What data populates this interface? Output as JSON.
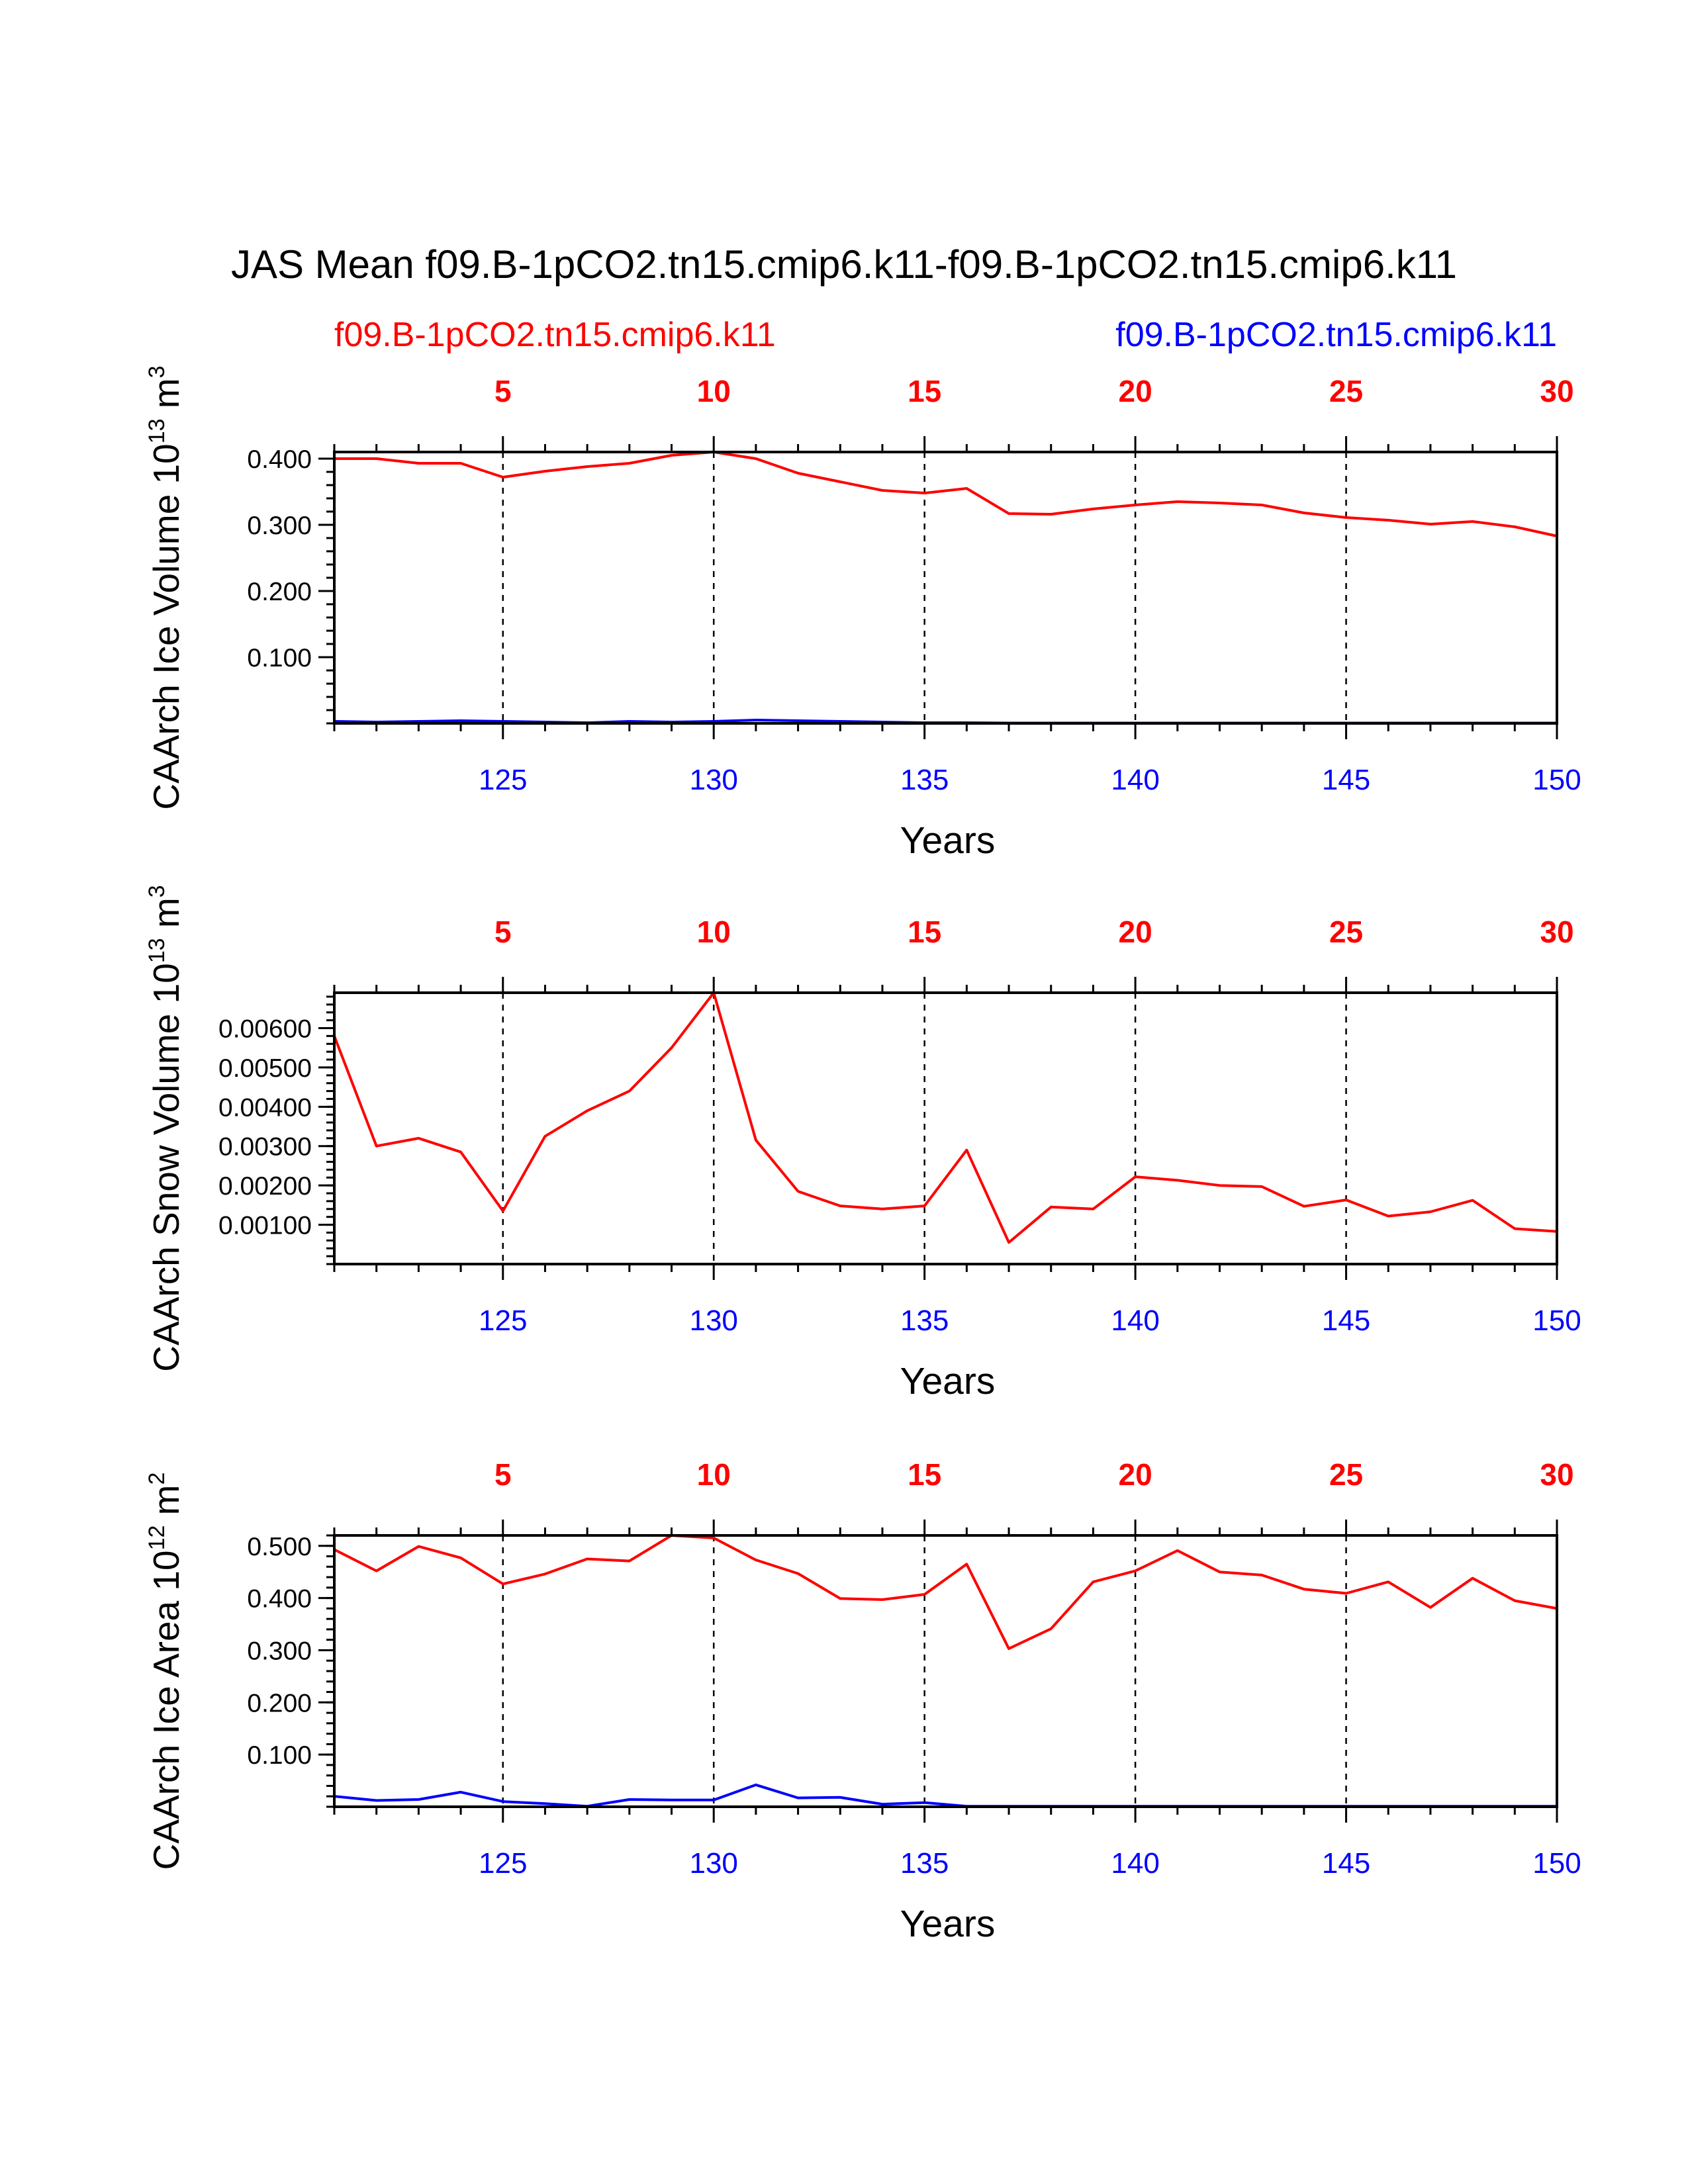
{
  "title": "JAS Mean f09.B-1pCO2.tn15.cmip6.k11-f09.B-1pCO2.tn15.cmip6.k11",
  "legend": {
    "left_label": "f09.B-1pCO2.tn15.cmip6.k11",
    "left_color": "#ff0000",
    "right_label": "f09.B-1pCO2.tn15.cmip6.k11",
    "right_color": "#0000ff"
  },
  "chart_data": [
    {
      "type": "line",
      "name": "ice-volume",
      "ylabel_main": "CAArch Ice Volume 10",
      "ylabel_exp": "13",
      "ylabel_unit": " m",
      "ylabel_unit_exp": "3",
      "xlabel": "Years",
      "xlim": [
        121,
        150
      ],
      "ylim": [
        0,
        0.41
      ],
      "y_ticks": [
        0.1,
        0.2,
        0.3,
        0.4
      ],
      "y_tick_labels": [
        "0.100",
        "0.200",
        "0.300",
        "0.400"
      ],
      "y_minor_step": 0.02,
      "x_bottom_ticks": [
        125,
        130,
        135,
        140,
        145,
        150
      ],
      "x_bottom_labels": [
        "125",
        "130",
        "135",
        "140",
        "145",
        "150"
      ],
      "x_top_labels": [
        "5",
        "10",
        "15",
        "20",
        "25",
        "30"
      ],
      "x_grid": [
        125,
        130,
        135,
        140,
        145
      ],
      "x": [
        121,
        122,
        123,
        124,
        125,
        126,
        127,
        128,
        129,
        130,
        131,
        132,
        133,
        134,
        135,
        136,
        137,
        138,
        139,
        140,
        141,
        142,
        143,
        144,
        145,
        146,
        147,
        148,
        149,
        150
      ],
      "series": [
        {
          "name": "f09.B-1pCO2.tn15.cmip6.k11",
          "color": "#ff0000",
          "values": [
            0.4,
            0.4,
            0.393,
            0.393,
            0.372,
            0.381,
            0.388,
            0.393,
            0.405,
            0.41,
            0.4,
            0.378,
            0.365,
            0.352,
            0.348,
            0.355,
            0.317,
            0.316,
            0.324,
            0.33,
            0.335,
            0.333,
            0.33,
            0.318,
            0.311,
            0.307,
            0.301,
            0.305,
            0.297,
            0.283
          ]
        },
        {
          "name": "f09.B-1pCO2.tn15.cmip6.k11",
          "color": "#0000ff",
          "values": [
            0.003,
            0.002,
            0.003,
            0.004,
            0.003,
            0.002,
            0.001,
            0.003,
            0.002,
            0.003,
            0.005,
            0.004,
            0.003,
            0.002,
            0.001,
            0.001,
            0.0005,
            0.0005,
            0.0005,
            0.0005,
            0.0005,
            0.0005,
            0.0005,
            0.0005,
            0.0005,
            0.0005,
            0.0005,
            0.0005,
            0.0005,
            0.0005
          ]
        }
      ]
    },
    {
      "type": "line",
      "name": "snow-volume",
      "ylabel_main": "CAArch Snow Volume 10",
      "ylabel_exp": "13",
      "ylabel_unit": " m",
      "ylabel_unit_exp": "3",
      "xlabel": "Years",
      "xlim": [
        121,
        150
      ],
      "ylim": [
        0,
        0.0069
      ],
      "y_ticks": [
        0.001,
        0.002,
        0.003,
        0.004,
        0.005,
        0.006
      ],
      "y_tick_labels": [
        "0.00100",
        "0.00200",
        "0.00300",
        "0.00400",
        "0.00500",
        "0.00600"
      ],
      "y_minor_step": 0.0002,
      "x_bottom_ticks": [
        125,
        130,
        135,
        140,
        145,
        150
      ],
      "x_bottom_labels": [
        "125",
        "130",
        "135",
        "140",
        "145",
        "150"
      ],
      "x_top_labels": [
        "5",
        "10",
        "15",
        "20",
        "25",
        "30"
      ],
      "x_grid": [
        125,
        130,
        135,
        140,
        145
      ],
      "x": [
        121,
        122,
        123,
        124,
        125,
        126,
        127,
        128,
        129,
        130,
        131,
        132,
        133,
        134,
        135,
        136,
        137,
        138,
        139,
        140,
        141,
        142,
        143,
        144,
        145,
        146,
        147,
        148,
        149,
        150
      ],
      "series": [
        {
          "name": "f09.B-1pCO2.tn15.cmip6.k11",
          "color": "#ff0000",
          "values": [
            0.0058,
            0.003,
            0.0032,
            0.00285,
            0.00135,
            0.00325,
            0.0039,
            0.0044,
            0.0055,
            0.0069,
            0.00315,
            0.00185,
            0.00148,
            0.0014,
            0.00148,
            0.0029,
            0.00055,
            0.00145,
            0.0014,
            0.00222,
            0.00213,
            0.002,
            0.00197,
            0.00147,
            0.00163,
            0.00122,
            0.00133,
            0.00162,
            0.0009,
            0.00083
          ]
        }
      ]
    },
    {
      "type": "line",
      "name": "ice-area",
      "ylabel_main": "CAArch Ice Area 10",
      "ylabel_exp": "12",
      "ylabel_unit": " m",
      "ylabel_unit_exp": "2",
      "xlabel": "Years",
      "xlim": [
        121,
        150
      ],
      "ylim": [
        0,
        0.52
      ],
      "y_ticks": [
        0.1,
        0.2,
        0.3,
        0.4,
        0.5
      ],
      "y_tick_labels": [
        "0.100",
        "0.200",
        "0.300",
        "0.400",
        "0.500"
      ],
      "y_minor_step": 0.02,
      "x_bottom_ticks": [
        125,
        130,
        135,
        140,
        145,
        150
      ],
      "x_bottom_labels": [
        "125",
        "130",
        "135",
        "140",
        "145",
        "150"
      ],
      "x_top_labels": [
        "5",
        "10",
        "15",
        "20",
        "25",
        "30"
      ],
      "x_grid": [
        125,
        130,
        135,
        140,
        145
      ],
      "x": [
        121,
        122,
        123,
        124,
        125,
        126,
        127,
        128,
        129,
        130,
        131,
        132,
        133,
        134,
        135,
        136,
        137,
        138,
        139,
        140,
        141,
        142,
        143,
        144,
        145,
        146,
        147,
        148,
        149,
        150
      ],
      "series": [
        {
          "name": "f09.B-1pCO2.tn15.cmip6.k11",
          "color": "#ff0000",
          "values": [
            0.493,
            0.452,
            0.499,
            0.477,
            0.427,
            0.446,
            0.475,
            0.471,
            0.52,
            0.515,
            0.473,
            0.447,
            0.399,
            0.397,
            0.407,
            0.465,
            0.303,
            0.341,
            0.431,
            0.452,
            0.491,
            0.45,
            0.444,
            0.417,
            0.409,
            0.431,
            0.382,
            0.438,
            0.395,
            0.38
          ]
        },
        {
          "name": "f09.B-1pCO2.tn15.cmip6.k11",
          "color": "#0000ff",
          "values": [
            0.02,
            0.012,
            0.014,
            0.028,
            0.01,
            0.006,
            0.001,
            0.014,
            0.013,
            0.013,
            0.042,
            0.017,
            0.018,
            0.005,
            0.008,
            0.001,
            0.001,
            0.001,
            0.001,
            0.001,
            0.001,
            0.001,
            0.001,
            0.001,
            0.001,
            0.001,
            0.001,
            0.001,
            0.001,
            0.001
          ]
        }
      ]
    }
  ]
}
